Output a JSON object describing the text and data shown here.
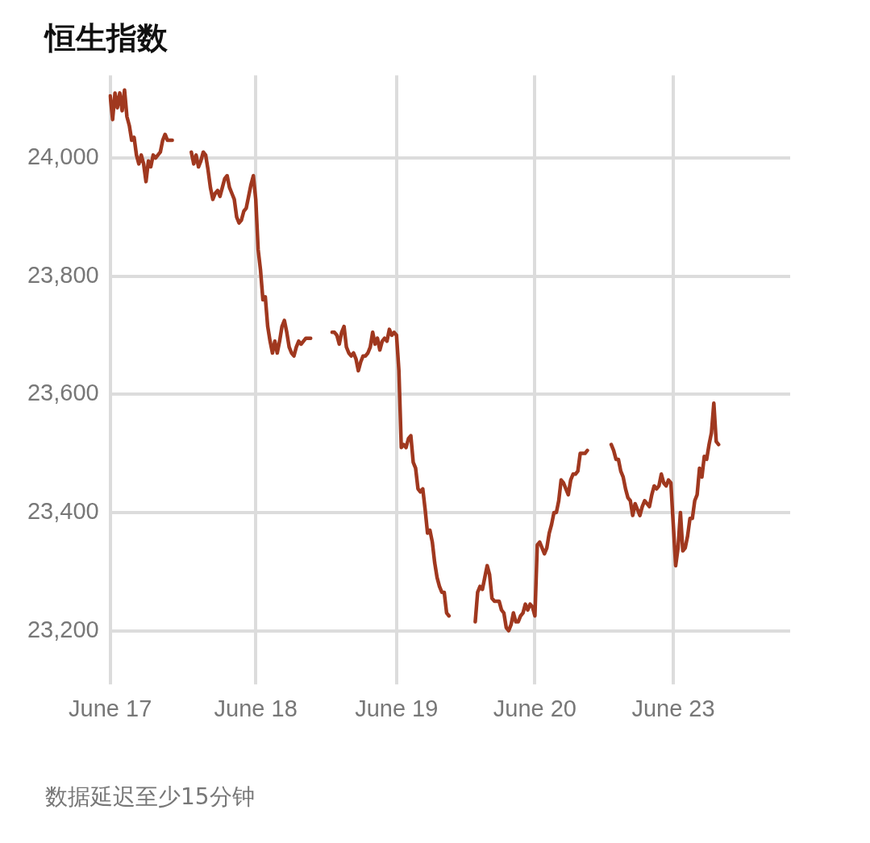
{
  "chart_data": {
    "type": "line",
    "title": "恒生指数",
    "annotations": [
      "数据延迟至少15分钟"
    ],
    "categories": [
      "June 17",
      null,
      null,
      null,
      null,
      null,
      null,
      null,
      null,
      null,
      null,
      null,
      null,
      null,
      null,
      null,
      null,
      null,
      null,
      null,
      null,
      null,
      null,
      null,
      null,
      null,
      null,
      null,
      null,
      null,
      null,
      null,
      null,
      null,
      null,
      null,
      null,
      null,
      null,
      null,
      null,
      null,
      null,
      null,
      null,
      null,
      null,
      null,
      null,
      null,
      null,
      null,
      null,
      null,
      null,
      null,
      null,
      null,
      null,
      null,
      null,
      "June 18",
      null,
      null,
      null,
      null,
      null,
      null,
      null,
      null,
      null,
      null,
      null,
      null,
      null,
      null,
      null,
      null,
      null,
      null,
      null,
      null,
      null,
      null,
      null,
      null,
      null,
      null,
      null,
      null,
      null,
      null,
      null,
      null,
      null,
      null,
      null,
      null,
      null,
      null,
      null,
      null,
      null,
      null,
      null,
      null,
      null,
      null,
      null,
      null,
      null,
      null,
      null,
      null,
      null,
      null,
      null,
      null,
      null,
      null,
      "June 19",
      null,
      null,
      null,
      null,
      null,
      null,
      null,
      null,
      null,
      null,
      null,
      null,
      null,
      null,
      null,
      null,
      null,
      null,
      null,
      null,
      null,
      null,
      null,
      null,
      null,
      null,
      null,
      null,
      null,
      null,
      null,
      null,
      null,
      null,
      null,
      null,
      null,
      null,
      null,
      null,
      null,
      null,
      null,
      null,
      null,
      null,
      null,
      null,
      null,
      null,
      null,
      null,
      null,
      null,
      null,
      null,
      null,
      "June 20",
      null,
      null,
      null,
      null,
      null,
      null,
      null,
      null,
      null,
      null,
      null,
      null,
      null,
      null,
      null,
      null,
      null,
      null,
      null,
      null,
      null,
      null,
      null,
      null,
      null,
      null,
      null,
      null,
      null,
      null,
      null,
      null,
      null,
      null,
      null,
      null,
      null,
      null,
      null,
      null,
      null,
      null,
      null,
      null,
      null,
      null,
      null,
      null,
      null,
      null,
      null,
      null,
      null,
      null,
      null,
      null,
      null,
      "June 23",
      null,
      null,
      null,
      null,
      null,
      null,
      null,
      null,
      null,
      null,
      null,
      null,
      null,
      null,
      null,
      null,
      null,
      null,
      null,
      null,
      null,
      null,
      null,
      null,
      null,
      null,
      null,
      null,
      null,
      null,
      null,
      null,
      null,
      null,
      null,
      null,
      null,
      null,
      null,
      null,
      null,
      null,
      null,
      null,
      null,
      null,
      null,
      null,
      null
    ],
    "ylim": [
      23150,
      24140
    ],
    "yticks": [
      {
        "value": 23200,
        "label": "23,200"
      },
      {
        "value": 23400,
        "label": "23,400"
      },
      {
        "value": 23600,
        "label": "23,600"
      },
      {
        "value": 23800,
        "label": "23,800"
      },
      {
        "value": 24000,
        "label": "24,000"
      }
    ],
    "grid": true,
    "legend": false,
    "marker": "none",
    "line_style": "solid",
    "series": [
      {
        "color": "#a0381f",
        "values": [
          24105,
          24065,
          24110,
          24085,
          24110,
          24080,
          24115,
          24070,
          24055,
          24030,
          24035,
          24005,
          23990,
          24005,
          23990,
          23960,
          23995,
          23985,
          24005,
          24000,
          24005,
          24010,
          24030,
          24040,
          24030,
          24030,
          24030,
          null,
          null,
          null,
          null,
          null,
          null,
          null,
          24010,
          23990,
          24005,
          23985,
          23995,
          24010,
          24005,
          23980,
          23950,
          23930,
          23940,
          23945,
          23935,
          23950,
          23965,
          23970,
          23950,
          23940,
          23930,
          23900,
          23890,
          23895,
          23910,
          23915,
          23935,
          23955,
          23970,
          23930,
          23845,
          23810,
          23760,
          23765,
          23715,
          23690,
          23670,
          23690,
          23670,
          23690,
          23715,
          23725,
          23705,
          23680,
          23670,
          23665,
          23680,
          23690,
          23685,
          23690,
          23695,
          23695,
          23695,
          null,
          null,
          null,
          null,
          null,
          null,
          null,
          null,
          23705,
          23705,
          23700,
          23685,
          23705,
          23715,
          23680,
          23670,
          23665,
          23670,
          23660,
          23640,
          23655,
          23665,
          23665,
          23670,
          23680,
          23705,
          23685,
          23695,
          23675,
          23690,
          23695,
          23690,
          23710,
          23700,
          23705,
          23700,
          23640,
          23510,
          23515,
          23510,
          23525,
          23530,
          23485,
          23475,
          23440,
          23435,
          23440,
          23405,
          23365,
          23370,
          23350,
          23315,
          23290,
          23275,
          23265,
          23265,
          23230,
          23225,
          null,
          null,
          null,
          null,
          null,
          null,
          null,
          null,
          null,
          null,
          23215,
          23265,
          23275,
          23270,
          23290,
          23310,
          23295,
          23255,
          23250,
          23250,
          23250,
          23235,
          23230,
          23205,
          23200,
          23210,
          23230,
          23215,
          23215,
          23225,
          23230,
          23245,
          23235,
          23245,
          23240,
          23225,
          23345,
          23350,
          23340,
          23330,
          23340,
          23365,
          23380,
          23400,
          23400,
          23420,
          23455,
          23450,
          23440,
          23430,
          23455,
          23465,
          23465,
          23470,
          23500,
          23500,
          23500,
          23505,
          null,
          null,
          null,
          null,
          null,
          null,
          null,
          null,
          null,
          23515,
          23505,
          23490,
          23490,
          23470,
          23460,
          23440,
          23425,
          23420,
          23395,
          23415,
          23405,
          23395,
          23410,
          23420,
          23415,
          23410,
          23430,
          23445,
          23440,
          23445,
          23465,
          23450,
          23445,
          23455,
          23450,
          23380,
          23310,
          23340,
          23400,
          23335,
          23340,
          23360,
          23390,
          23390,
          23420,
          23430,
          23475,
          23460,
          23495,
          23490,
          23515,
          23535,
          23585,
          23520,
          23515,
          null,
          null,
          null,
          null,
          null,
          null,
          null,
          null,
          null,
          null,
          null,
          null,
          null,
          null,
          null,
          null,
          null,
          null,
          null,
          null,
          null,
          null,
          null,
          null,
          null,
          null,
          null,
          null,
          null,
          null
        ]
      }
    ]
  }
}
